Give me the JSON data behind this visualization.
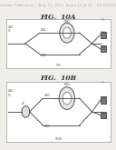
{
  "bg_color": "#f0eeeb",
  "header_color": "#b0aea8",
  "header_fontsize": 2.8,
  "fig_label_fontsize": 5.5,
  "box_edge_color": "#aaaaaa",
  "box_face_color": "#ffffff",
  "line_color": "#555555",
  "ring_edge_color": "#666666",
  "rect_face_color": "#777777",
  "rect_edge_color": "#444444",
  "label_color": "#555555",
  "corner_label_color": "#888888",
  "fig1_label": "FIG.  10A",
  "fig2_label": "FIG.  10B",
  "header": "Patent Application Publication    Aug. 11, 2011  Sheet 13 of 24    US 2011/0194804 A1"
}
